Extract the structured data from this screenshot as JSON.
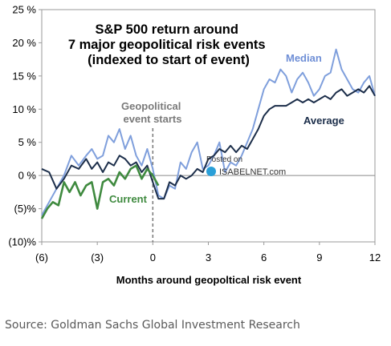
{
  "chart_data": {
    "type": "line",
    "title": "S&P 500 return around\n7 major geopolitical risk events\n(indexed to start of event)",
    "xlabel": "Months around geopoltical risk event",
    "ylabel": "",
    "xlim": [
      -6,
      12
    ],
    "ylim": [
      -10,
      25
    ],
    "x_ticks": [
      -6,
      -3,
      0,
      3,
      6,
      9,
      12
    ],
    "x_tick_labels": [
      "(6)",
      "(3)",
      "0",
      "3",
      "6",
      "9",
      "12"
    ],
    "y_ticks": [
      -10,
      -5,
      0,
      5,
      10,
      15,
      20,
      25
    ],
    "y_tick_labels": [
      "(10)%",
      "(5)%",
      "0 %",
      "5 %",
      "10 %",
      "15 %",
      "20 %",
      "25 %"
    ],
    "event_marker": {
      "x": 0,
      "label": "Geopolitical\nevent starts"
    },
    "watermark": {
      "line1": "Posted on",
      "line2": "ISABELNET.com"
    },
    "series": [
      {
        "name": "Median",
        "color": "#7f9fdc",
        "label_color": "#6f8fd6",
        "x": [
          -6.0,
          -5.6,
          -5.2,
          -4.8,
          -4.4,
          -4.0,
          -3.6,
          -3.3,
          -3.0,
          -2.7,
          -2.4,
          -2.1,
          -1.8,
          -1.5,
          -1.2,
          -0.9,
          -0.6,
          -0.3,
          0.0,
          0.3,
          0.6,
          0.9,
          1.2,
          1.5,
          1.8,
          2.1,
          2.4,
          2.7,
          3.0,
          3.3,
          3.6,
          3.9,
          4.2,
          4.5,
          4.8,
          5.1,
          5.4,
          5.7,
          6.0,
          6.3,
          6.6,
          6.9,
          7.2,
          7.5,
          7.8,
          8.1,
          8.4,
          8.7,
          9.0,
          9.3,
          9.6,
          9.9,
          10.2,
          10.5,
          10.8,
          11.1,
          11.4,
          11.7,
          12.0
        ],
        "values": [
          -6.0,
          -4.0,
          -2.0,
          0.0,
          3.0,
          1.5,
          3.0,
          4.0,
          2.5,
          3.0,
          6.0,
          5.0,
          7.0,
          4.0,
          6.0,
          3.0,
          1.5,
          4.0,
          1.0,
          -3.0,
          -3.5,
          -1.5,
          -2.0,
          2.0,
          1.0,
          3.5,
          5.0,
          1.0,
          1.5,
          3.0,
          5.0,
          0.5,
          2.0,
          1.5,
          3.0,
          5.0,
          7.0,
          10.0,
          13.0,
          14.5,
          14.0,
          16.0,
          15.0,
          12.5,
          14.5,
          15.5,
          14.0,
          12.0,
          13.0,
          15.0,
          15.5,
          19.0,
          16.0,
          14.5,
          13.0,
          12.5,
          14.0,
          15.0,
          12.0
        ]
      },
      {
        "name": "Average",
        "color": "#1c2e4a",
        "label_color": "#1c2e4a",
        "x": [
          -6.0,
          -5.6,
          -5.2,
          -4.8,
          -4.4,
          -4.0,
          -3.6,
          -3.3,
          -3.0,
          -2.7,
          -2.4,
          -2.1,
          -1.8,
          -1.5,
          -1.2,
          -0.9,
          -0.6,
          -0.3,
          0.0,
          0.3,
          0.6,
          0.9,
          1.2,
          1.5,
          1.8,
          2.1,
          2.4,
          2.7,
          3.0,
          3.3,
          3.6,
          3.9,
          4.2,
          4.5,
          4.8,
          5.1,
          5.4,
          5.7,
          6.0,
          6.3,
          6.6,
          6.9,
          7.2,
          7.5,
          7.8,
          8.1,
          8.4,
          8.7,
          9.0,
          9.3,
          9.6,
          9.9,
          10.2,
          10.5,
          10.8,
          11.1,
          11.4,
          11.7,
          12.0
        ],
        "values": [
          1.0,
          0.5,
          -2.0,
          -0.5,
          1.5,
          1.0,
          2.5,
          1.0,
          2.0,
          0.5,
          2.0,
          1.5,
          3.0,
          2.5,
          1.5,
          2.0,
          0.5,
          1.5,
          -1.0,
          -3.5,
          -3.5,
          -1.0,
          -1.5,
          0.0,
          -0.5,
          0.0,
          1.0,
          0.5,
          2.5,
          3.0,
          4.0,
          3.5,
          4.5,
          3.5,
          4.5,
          4.0,
          5.5,
          7.0,
          9.0,
          10.0,
          10.5,
          10.5,
          10.5,
          11.0,
          11.5,
          11.0,
          11.5,
          11.0,
          11.5,
          12.0,
          11.5,
          12.5,
          13.0,
          12.0,
          12.5,
          13.0,
          12.5,
          13.5,
          12.0
        ]
      },
      {
        "name": "Current",
        "color": "#3f8a3f",
        "label_color": "#3f8a3f",
        "x": [
          -6.0,
          -5.7,
          -5.4,
          -5.1,
          -4.8,
          -4.5,
          -4.2,
          -3.9,
          -3.6,
          -3.3,
          -3.0,
          -2.7,
          -2.4,
          -2.1,
          -1.8,
          -1.5,
          -1.2,
          -0.9,
          -0.6,
          -0.3,
          0.0,
          0.3
        ],
        "values": [
          -6.5,
          -5.0,
          -4.0,
          -4.5,
          -1.0,
          -2.5,
          -1.0,
          -3.0,
          -1.5,
          -1.0,
          -5.0,
          -1.0,
          -0.5,
          -1.5,
          0.5,
          -0.5,
          1.0,
          1.5,
          -0.5,
          1.0,
          0.0,
          -1.5
        ]
      }
    ]
  },
  "source": "Source: Goldman Sachs Global Investment Research"
}
